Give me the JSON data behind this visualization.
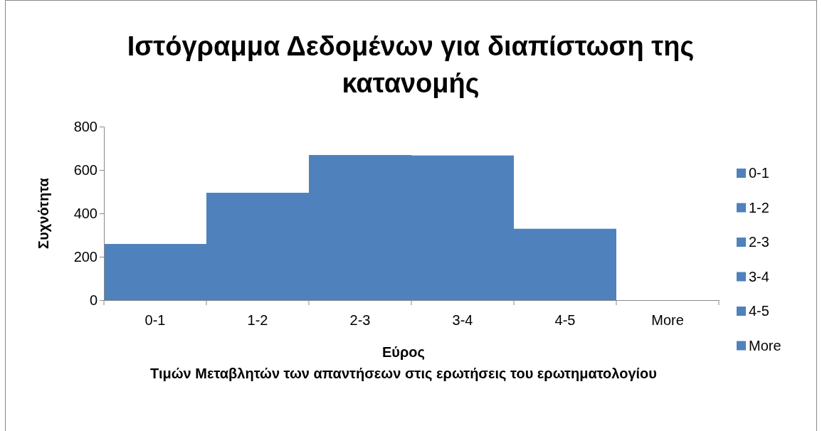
{
  "chart_data": {
    "type": "bar",
    "title": "Ιστόγραμμα Δεδομένων για διαπίστωση της κατανομής",
    "xlabel": "Εύρος\nΤιμών Μεταβλητών των απαντήσεων στις ερωτήσεις του ερωτηματολογίου",
    "ylabel": "Συχνότητα",
    "categories": [
      "0-1",
      "1-2",
      "2-3",
      "3-4",
      "4-5",
      "More"
    ],
    "stacked": true,
    "series": [
      {
        "name": "0-1",
        "color": "#4f81bd",
        "values": [
          259,
          null,
          null,
          null,
          null,
          null
        ]
      },
      {
        "name": "1-2",
        "color": "#4f81bd",
        "values": [
          null,
          495,
          null,
          null,
          null,
          null
        ]
      },
      {
        "name": "2-3",
        "color": "#4f81bd",
        "values": [
          null,
          null,
          669,
          null,
          null,
          null
        ]
      },
      {
        "name": "3-4",
        "color": "#4f81bd",
        "values": [
          null,
          null,
          null,
          667,
          null,
          null
        ]
      },
      {
        "name": "4-5",
        "color": "#4f81bd",
        "values": [
          null,
          null,
          null,
          null,
          329,
          null
        ]
      },
      {
        "name": "More",
        "color": "#4f81bd",
        "values": [
          null,
          null,
          null,
          null,
          null,
          0
        ]
      }
    ],
    "ylim": [
      0,
      800
    ],
    "yticks": [
      0,
      200,
      400,
      600,
      800
    ],
    "legend": "right"
  }
}
